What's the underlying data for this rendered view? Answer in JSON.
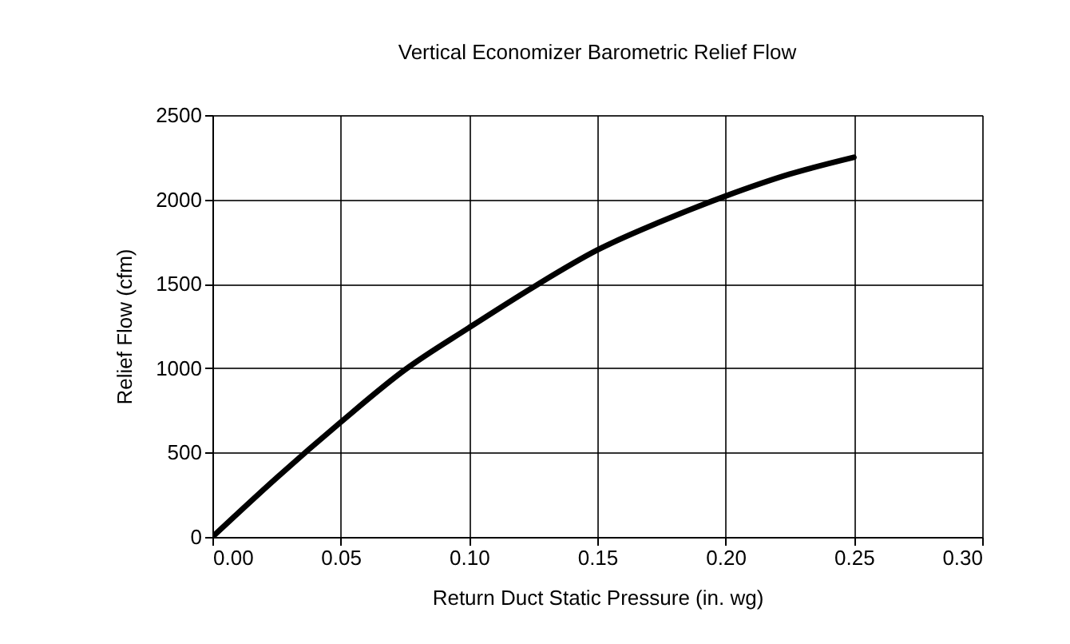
{
  "chart_data": {
    "type": "line",
    "title": "Vertical Economizer Barometric Relief Flow",
    "xlabel": "Return Duct Static Pressure (in. wg)",
    "ylabel": "Relief Flow (cfm)",
    "x": [
      0,
      0.025,
      0.05,
      0.075,
      0.1,
      0.125,
      0.15,
      0.175,
      0.2,
      0.225,
      0.25
    ],
    "series": [
      {
        "color": "#000000",
        "values": [
          0,
          350,
          680,
          990,
          1240,
          1480,
          1700,
          1870,
          2020,
          2150,
          2250
        ]
      }
    ],
    "xlim": [
      0,
      0.3
    ],
    "xticks": [
      {
        "value": 0,
        "label": "0.00"
      },
      {
        "value": 0.05,
        "label": "0.05"
      },
      {
        "value": 0.1,
        "label": "0.10"
      },
      {
        "value": 0.15,
        "label": "0.15"
      },
      {
        "value": 0.2,
        "label": "0.20"
      },
      {
        "value": 0.25,
        "label": "0.25"
      },
      {
        "value": 0.3,
        "label": "0.30"
      }
    ],
    "ylim": [
      0,
      2500
    ],
    "yticks": [
      0,
      500,
      1000,
      1500,
      2000,
      2500
    ],
    "grid": true,
    "marker": "none",
    "line_style": "solid",
    "legend": false
  }
}
